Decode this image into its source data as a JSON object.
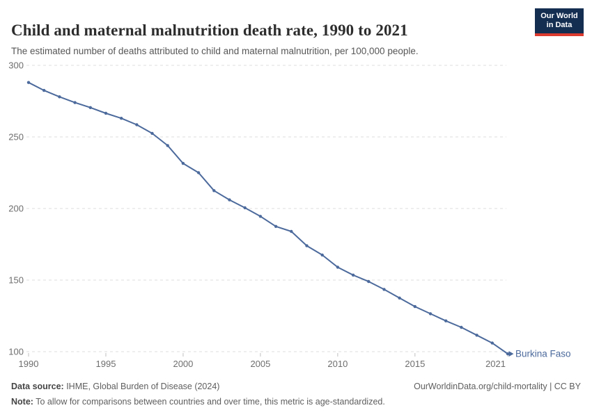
{
  "header": {
    "title": "Child and maternal malnutrition death rate, 1990 to 2021",
    "subtitle": "The estimated number of deaths attributed to child and maternal malnutrition, per 100,000 people.",
    "logo": {
      "line1": "Our World",
      "line2": "in Data"
    }
  },
  "chart_data": {
    "type": "line",
    "title": "Child and maternal malnutrition death rate, 1990 to 2021",
    "ylabel": "",
    "xlabel": "",
    "xlim": [
      1990,
      2021
    ],
    "ylim": [
      100,
      300
    ],
    "y_ticks": [
      100,
      150,
      200,
      250,
      300
    ],
    "x_ticks": [
      1990,
      1995,
      2000,
      2005,
      2010,
      2015,
      2021
    ],
    "grid": "horizontal-dashed",
    "legend_position": "end-of-line-label",
    "series": [
      {
        "name": "Burkina Faso",
        "color": "#4C6A9C",
        "x": [
          1990,
          1991,
          1992,
          1993,
          1994,
          1995,
          1996,
          1997,
          1998,
          1999,
          2000,
          2001,
          2002,
          2003,
          2004,
          2005,
          2006,
          2007,
          2008,
          2009,
          2010,
          2011,
          2012,
          2013,
          2014,
          2015,
          2016,
          2017,
          2018,
          2019,
          2020,
          2021
        ],
        "values": [
          288,
          282.5,
          278,
          274,
          270.5,
          266.5,
          263,
          258.5,
          252.5,
          244,
          231.5,
          225,
          212.5,
          206,
          200.5,
          194.5,
          187.5,
          184,
          174,
          167.5,
          159,
          153.5,
          149,
          143.5,
          137.5,
          131.5,
          126.5,
          121.5,
          117,
          111.5,
          106,
          98.5
        ]
      }
    ]
  },
  "footer": {
    "datasource_label": "Data source:",
    "datasource_text": " IHME, Global Burden of Disease (2024)",
    "link": "OurWorldinData.org/child-mortality | CC BY",
    "note_label": "Note:",
    "note_text": " To allow for comparisons between countries and over time, this metric is age-standardized."
  },
  "colors": {
    "line": "#4C6A9C",
    "grid": "#dcdcdc",
    "axis_text": "#6e6e6e",
    "tick_mark": "#bfbfbf",
    "logo_bg": "#142E52",
    "logo_red": "#DC3A2E",
    "title_text": "#2d2d2d",
    "subtitle_text": "#565656"
  }
}
